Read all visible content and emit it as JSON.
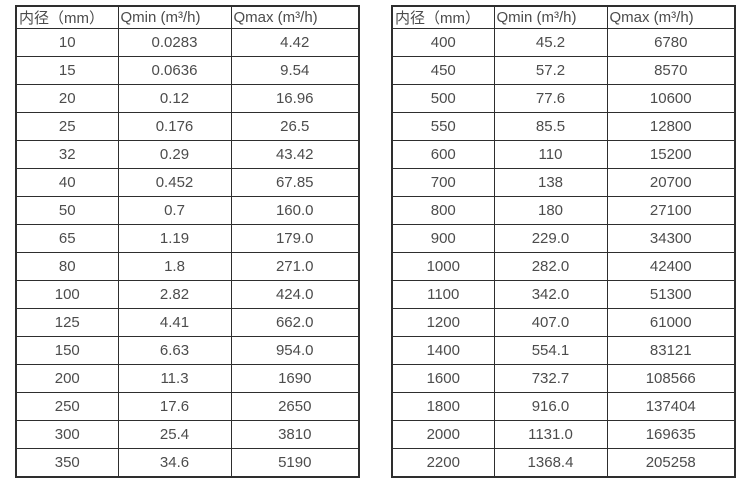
{
  "colors": {
    "table_border": "#2e2e2e",
    "text": "#4c4c4c",
    "background": "#ffffff"
  },
  "chart_data": [
    {
      "type": "table",
      "name": "flow-rate-table-dn10-dn350",
      "columns": [
        "内径（mm）",
        "Qmin (m³/h)",
        "Qmax (m³/h)"
      ],
      "rows": [
        [
          "10",
          "0.0283",
          "4.42"
        ],
        [
          "15",
          "0.0636",
          "9.54"
        ],
        [
          "20",
          "0.12",
          "16.96"
        ],
        [
          "25",
          "0.176",
          "26.5"
        ],
        [
          "32",
          "0.29",
          "43.42"
        ],
        [
          "40",
          "0.452",
          "67.85"
        ],
        [
          "50",
          "0.7",
          "160.0"
        ],
        [
          "65",
          "1.19",
          "179.0"
        ],
        [
          "80",
          "1.8",
          "271.0"
        ],
        [
          "100",
          "2.82",
          "424.0"
        ],
        [
          "125",
          "4.41",
          "662.0"
        ],
        [
          "150",
          "6.63",
          "954.0"
        ],
        [
          "200",
          "11.3",
          "1690"
        ],
        [
          "250",
          "17.6",
          "2650"
        ],
        [
          "300",
          "25.4",
          "3810"
        ],
        [
          "350",
          "34.6",
          "5190"
        ]
      ]
    },
    {
      "type": "table",
      "name": "flow-rate-table-dn400-dn2200",
      "columns": [
        "内径（mm）",
        "Qmin (m³/h)",
        "Qmax (m³/h)"
      ],
      "rows": [
        [
          "400",
          "45.2",
          "6780"
        ],
        [
          "450",
          "57.2",
          "8570"
        ],
        [
          "500",
          "77.6",
          "10600"
        ],
        [
          "550",
          "85.5",
          "12800"
        ],
        [
          "600",
          "110",
          "15200"
        ],
        [
          "700",
          "138",
          "20700"
        ],
        [
          "800",
          "180",
          "27100"
        ],
        [
          "900",
          "229.0",
          "34300"
        ],
        [
          "1000",
          "282.0",
          "42400"
        ],
        [
          "1100",
          "342.0",
          "51300"
        ],
        [
          "1200",
          "407.0",
          "61000"
        ],
        [
          "1400",
          "554.1",
          "83121"
        ],
        [
          "1600",
          "732.7",
          "108566"
        ],
        [
          "1800",
          "916.0",
          "137404"
        ],
        [
          "2000",
          "1131.0",
          "169635"
        ],
        [
          "2200",
          "1368.4",
          "205258"
        ]
      ]
    }
  ]
}
